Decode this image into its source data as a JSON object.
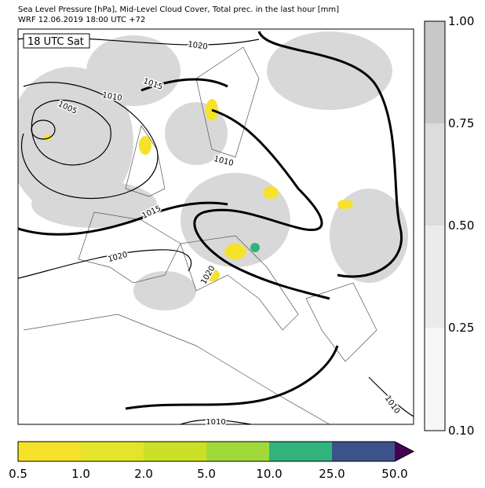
{
  "header": {
    "title_line1": "Sea Level Pressure [hPa], Mid-Level Cloud Cover, Total prec. in the last hour [mm]",
    "title_line2": "WRF 12.06.2019 18:00 UTC +72"
  },
  "map": {
    "time_label": "18 UTC Sat",
    "contour_labels": [
      "1020",
      "1015",
      "1010",
      "1005",
      "1010",
      "1015",
      "1020",
      "1020",
      "1010",
      "1010"
    ]
  },
  "cloud_colorbar": {
    "ticks": [
      "1.00",
      "0.75",
      "0.50",
      "0.25",
      "0.10"
    ],
    "colors": [
      "#c8c8c8",
      "#dcdcdc",
      "#ebebeb",
      "#f7f7f7"
    ]
  },
  "precip_colorbar": {
    "ticks": [
      "0.5",
      "1.0",
      "2.0",
      "5.0",
      "10.0",
      "25.0",
      "50.0"
    ],
    "colors": [
      "#f6e22a",
      "#e4e42a",
      "#cbe024",
      "#a0da3a",
      "#30b47b",
      "#3b528b",
      "#440154"
    ]
  }
}
